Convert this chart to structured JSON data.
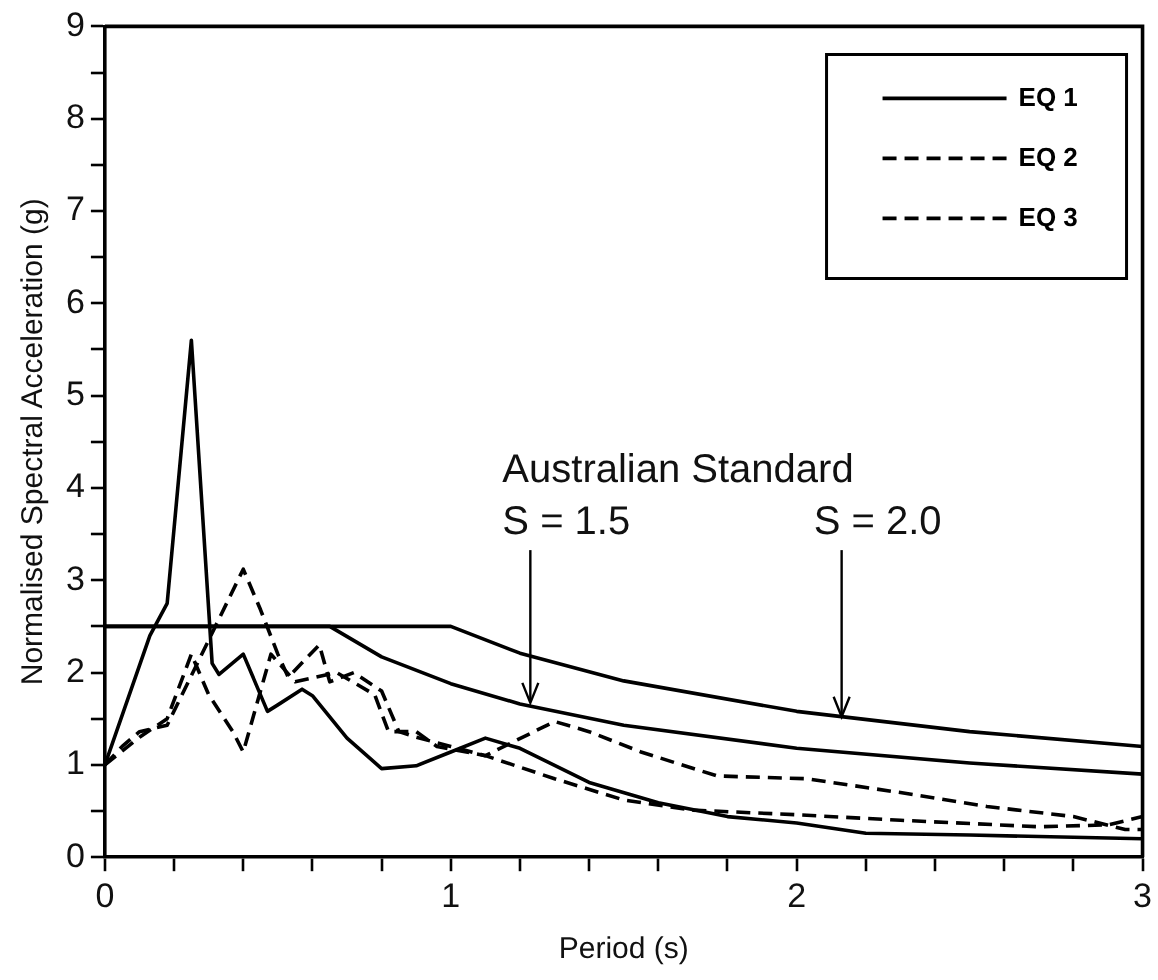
{
  "chart_data": {
    "type": "line",
    "xlabel": "Period (s)",
    "ylabel": "Normalised Spectral Acceleration (g)",
    "xlim": [
      0,
      3
    ],
    "ylim": [
      0,
      9
    ],
    "xticks": [
      0,
      {
        "value": 0.2,
        "label": null
      },
      {
        "value": 0.4,
        "label": null
      },
      {
        "value": 0.6,
        "label": null
      },
      {
        "value": 0.8,
        "label": null
      },
      1,
      {
        "value": 1.2,
        "label": null
      },
      {
        "value": 1.4,
        "label": null
      },
      {
        "value": 1.6,
        "label": null
      },
      {
        "value": 1.8,
        "label": null
      },
      2,
      {
        "value": 2.2,
        "label": null
      },
      {
        "value": 2.4,
        "label": null
      },
      {
        "value": 2.6,
        "label": null
      },
      {
        "value": 2.8,
        "label": null
      },
      3
    ],
    "yticks": [
      0,
      {
        "value": 0.5,
        "label": null
      },
      1,
      {
        "value": 1.5,
        "label": null
      },
      2,
      {
        "value": 2.5,
        "label": null
      },
      3,
      {
        "value": 3.5,
        "label": null
      },
      4,
      {
        "value": 4.5,
        "label": null
      },
      5,
      {
        "value": 5.5,
        "label": null
      },
      6,
      {
        "value": 6.5,
        "label": null
      },
      7,
      {
        "value": 7.5,
        "label": null
      },
      8,
      {
        "value": 8.5,
        "label": null
      },
      9
    ],
    "grid": false,
    "legend": "top right",
    "marker": "none",
    "series": [
      {
        "name": "EQ 1",
        "color": "#000000",
        "line_style": "solid",
        "x": [
          0,
          0.13,
          0.18,
          0.25,
          0.31,
          0.33,
          0.4,
          0.47,
          0.5,
          0.57,
          0.6,
          0.7,
          0.8,
          0.9,
          1.0,
          1.1,
          1.2,
          1.4,
          1.6,
          1.8,
          2.0,
          2.2,
          2.5,
          3.0
        ],
        "values": [
          1,
          2.4,
          2.75,
          5.6,
          2.1,
          1.98,
          2.2,
          1.58,
          1.65,
          1.82,
          1.75,
          1.29,
          0.96,
          0.99,
          1.14,
          1.29,
          1.18,
          0.81,
          0.59,
          0.44,
          0.37,
          0.26,
          0.24,
          0.2
        ]
      },
      {
        "name": "EQ 2",
        "color": "#000000",
        "line_style": "dashed",
        "x": [
          0,
          0.05,
          0.1,
          0.18,
          0.4,
          0.45,
          0.5,
          0.53,
          0.62,
          0.65,
          0.72,
          0.8,
          0.85,
          0.9,
          1.0,
          1.1,
          1.3,
          1.5,
          1.7,
          2.0,
          2.3,
          2.7,
          2.9,
          3.0
        ],
        "values": [
          1,
          1.2,
          1.36,
          1.43,
          3.12,
          2.68,
          2.2,
          1.95,
          2.3,
          1.9,
          2.0,
          1.8,
          1.36,
          1.3,
          1.2,
          1.1,
          0.85,
          0.62,
          0.51,
          0.46,
          0.4,
          0.33,
          0.35,
          0.44
        ]
      },
      {
        "name": "EQ 3",
        "color": "#000000",
        "line_style": "dashed",
        "x": [
          0,
          0.1,
          0.18,
          0.25,
          0.3,
          0.37,
          0.4,
          0.48,
          0.55,
          0.67,
          0.78,
          0.82,
          0.9,
          0.96,
          1.1,
          1.3,
          1.4,
          1.55,
          1.77,
          2.03,
          2.3,
          2.55,
          2.8,
          2.95,
          3.0
        ],
        "values": [
          1,
          1.3,
          1.5,
          2.2,
          1.76,
          1.36,
          1.14,
          2.2,
          1.9,
          2.0,
          1.76,
          1.36,
          1.36,
          1.2,
          1.1,
          1.47,
          1.36,
          1.14,
          0.88,
          0.85,
          0.7,
          0.55,
          0.44,
          0.3,
          0.3
        ]
      },
      {
        "color": "#000000",
        "line_style": "solid",
        "x": [
          0,
          0.65,
          0.8,
          1.0,
          1.2,
          1.5,
          2.0,
          2.5,
          3.0
        ],
        "values": [
          2.5,
          2.5,
          2.17,
          1.88,
          1.66,
          1.43,
          1.18,
          1.02,
          0.9
        ]
      },
      {
        "color": "#000000",
        "line_style": "solid",
        "x": [
          0,
          1.0,
          1.2,
          1.5,
          2.0,
          2.5,
          3.0
        ],
        "values": [
          2.5,
          2.5,
          2.21,
          1.91,
          1.58,
          1.36,
          1.2
        ]
      }
    ],
    "annotations": [
      "Australian Standard",
      {
        "text": "S = 1.5",
        "x": 1.23,
        "y": 1.65
      },
      {
        "text": "S = 2.0",
        "x": 2.13,
        "y": 1.5
      }
    ]
  }
}
